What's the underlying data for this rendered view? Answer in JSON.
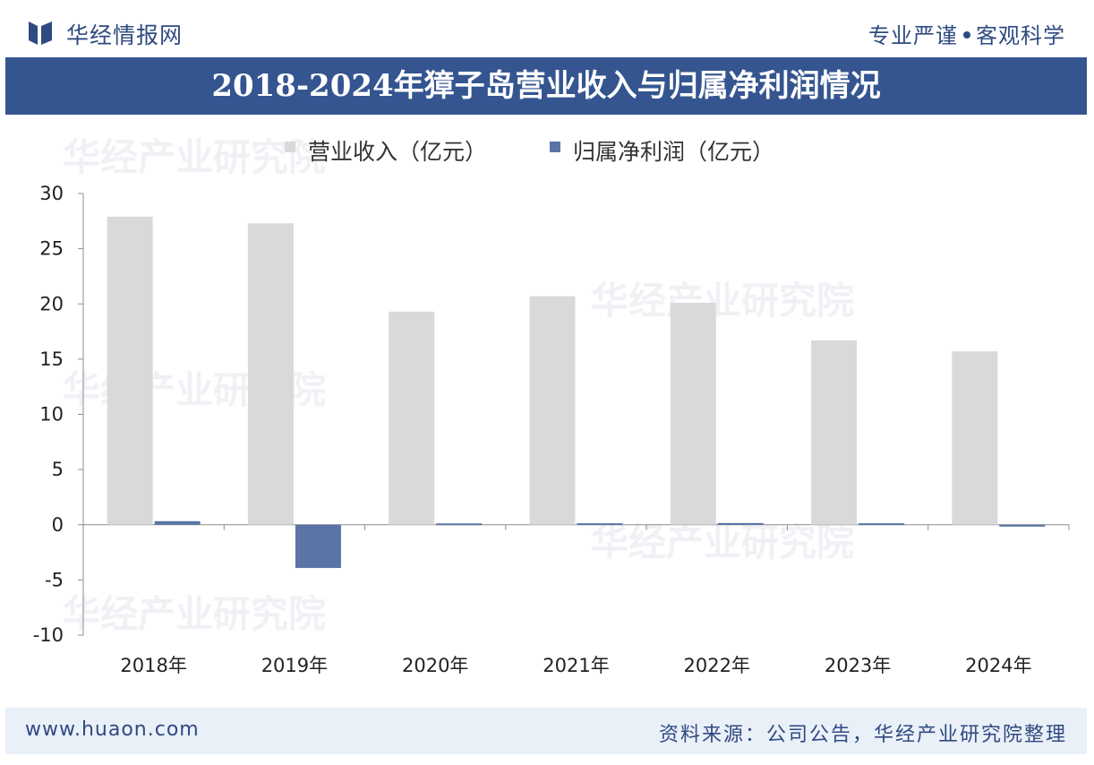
{
  "header": {
    "logo_text": "华经情报网",
    "slogan_left": "专业严谨",
    "slogan_right": "客观科学"
  },
  "footer": {
    "url": "www.huaon.com",
    "source": "资料来源：公司公告，华经产业研究院整理"
  },
  "watermark": {
    "text": "华经产业研究院"
  },
  "colors": {
    "title_band": "#345590",
    "revenue": "#d9d9d9",
    "profit": "#5a74a6"
  },
  "chart_data": {
    "type": "bar",
    "title": "2018-2024年獐子岛营业收入与归属净利润情况",
    "categories": [
      "2018年",
      "2019年",
      "2020年",
      "2021年",
      "2022年",
      "2023年",
      "2024年"
    ],
    "series": [
      {
        "name": "营业收入（亿元）",
        "values": [
          27.9,
          27.3,
          19.3,
          20.7,
          20.1,
          16.7,
          15.7
        ]
      },
      {
        "name": "归属净利润（亿元）",
        "values": [
          0.32,
          -3.92,
          0.12,
          0.13,
          0.15,
          0.13,
          -0.17
        ]
      }
    ],
    "xlabel": "",
    "ylabel": "",
    "ylim": [
      -10,
      30
    ],
    "yticks": [
      30,
      25,
      20,
      15,
      10,
      5,
      0,
      -5,
      -10
    ],
    "grid": false,
    "legend_position": "top"
  }
}
